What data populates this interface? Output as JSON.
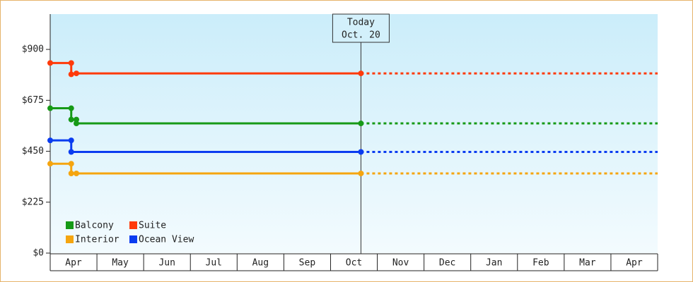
{
  "chart_data": {
    "type": "line",
    "categories": [
      "Apr",
      "May",
      "Jun",
      "Jul",
      "Aug",
      "Sep",
      "Oct",
      "Nov",
      "Dec",
      "Jan",
      "Feb",
      "Mar",
      "Apr"
    ],
    "xlim": [
      0,
      13
    ],
    "ylim": [
      0,
      1056
    ],
    "yticks": [
      {
        "value": 0,
        "label": "$0"
      },
      {
        "value": 225,
        "label": "$225"
      },
      {
        "value": 450,
        "label": "$450"
      },
      {
        "value": 675,
        "label": "$675"
      },
      {
        "value": 900,
        "label": "$900"
      }
    ],
    "annotation": {
      "label": [
        "Today",
        "Oct. 20"
      ],
      "x": 6.65
    },
    "legend": "bottom-left",
    "series": [
      {
        "name": "Balcony",
        "color": "#169a16",
        "x": [
          0,
          0.45,
          0.45,
          0.56,
          0.56,
          6.65
        ],
        "values": [
          640,
          640,
          590,
          590,
          573,
          573
        ]
      },
      {
        "name": "Suite",
        "color": "#ff3a0a",
        "x": [
          0,
          0.45,
          0.45,
          0.56,
          6.65
        ],
        "values": [
          840,
          840,
          790,
          794,
          794
        ]
      },
      {
        "name": "Interior",
        "color": "#f5a50f",
        "x": [
          0,
          0.45,
          0.45,
          0.56,
          6.65
        ],
        "values": [
          395,
          395,
          352,
          352,
          352
        ]
      },
      {
        "name": "Ocean View",
        "color": "#0a3cf0",
        "x": [
          0,
          0.45,
          0.45,
          6.65
        ],
        "values": [
          498,
          498,
          447,
          447
        ]
      }
    ]
  }
}
